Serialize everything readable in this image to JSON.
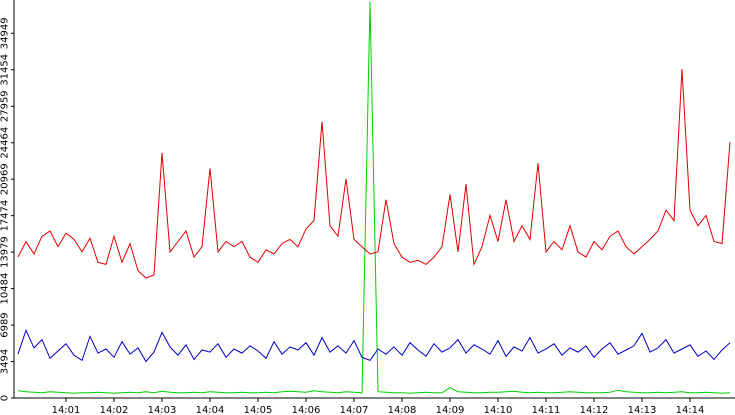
{
  "chart_data": {
    "type": "line",
    "categories": [
      null,
      null,
      null,
      null,
      null,
      null,
      "14:01",
      null,
      null,
      null,
      null,
      null,
      "14:02",
      null,
      null,
      null,
      null,
      null,
      "14:03",
      null,
      null,
      null,
      null,
      null,
      "14:04",
      null,
      null,
      null,
      null,
      null,
      "14:05",
      null,
      null,
      null,
      null,
      null,
      "14:06",
      null,
      null,
      null,
      null,
      null,
      "14:07",
      null,
      null,
      null,
      null,
      null,
      "14:08",
      null,
      null,
      null,
      null,
      null,
      "14:09",
      null,
      null,
      null,
      null,
      null,
      "14:10",
      null,
      null,
      null,
      null,
      null,
      "14:11",
      null,
      null,
      null,
      null,
      null,
      "14:12",
      null,
      null,
      null,
      null,
      null,
      "14:13",
      null,
      null,
      null,
      null,
      null,
      "14:14",
      null,
      null,
      null,
      null,
      null
    ],
    "series": [
      {
        "color": "#e00000",
        "values": [
          13500,
          15000,
          13800,
          15500,
          16000,
          14500,
          15800,
          15200,
          14000,
          15300,
          13000,
          12800,
          15500,
          13000,
          14800,
          12200,
          11500,
          11800,
          23500,
          14000,
          15000,
          16000,
          13500,
          14500,
          22000,
          14000,
          15000,
          14500,
          15000,
          13500,
          13000,
          14200,
          13800,
          14800,
          15200,
          14500,
          16200,
          17000,
          26500,
          16500,
          15500,
          21000,
          15200,
          14500,
          13800,
          14000,
          19000,
          14800,
          13500,
          13000,
          13200,
          12800,
          13500,
          14500,
          19500,
          14000,
          20500,
          12800,
          14500,
          17500,
          15000,
          19000,
          15000,
          16500,
          15200,
          22500,
          14000,
          15000,
          14200,
          16500,
          14000,
          13500,
          15000,
          14200,
          15500,
          16000,
          14500,
          13800,
          14500,
          15200,
          16000,
          18000,
          17000,
          31500,
          18000,
          16500,
          17500,
          15000,
          14800,
          24500
        ]
      },
      {
        "color": "#0000c0",
        "values": [
          4200,
          6500,
          4800,
          5600,
          3800,
          4500,
          5200,
          4100,
          3600,
          5900,
          4300,
          4700,
          3900,
          5400,
          4200,
          4800,
          3500,
          4400,
          6300,
          4900,
          4100,
          5100,
          3700,
          4600,
          4400,
          5200,
          3900,
          4700,
          4300,
          5000,
          4500,
          3800,
          5400,
          4200,
          4900,
          4600,
          5300,
          4100,
          5800,
          4400,
          5000,
          4300,
          5500,
          3900,
          3600,
          4700,
          4200,
          4900,
          4100,
          5300,
          4600,
          4000,
          5200,
          4400,
          4800,
          5600,
          4300,
          5100,
          4700,
          4200,
          5500,
          4000,
          4900,
          4500,
          5800,
          4300,
          4700,
          5200,
          4100,
          4800,
          4400,
          5000,
          3900,
          4700,
          5300,
          4200,
          4600,
          5000,
          6200,
          4400,
          4800,
          5600,
          4300,
          4700,
          5100,
          4000,
          4500,
          3700,
          4600,
          5300
        ]
      },
      {
        "color": "#00d000",
        "values": [
          700,
          600,
          550,
          500,
          600,
          550,
          500,
          450,
          500,
          500,
          550,
          500,
          450,
          500,
          550,
          500,
          600,
          500,
          650,
          550,
          500,
          500,
          550,
          500,
          600,
          550,
          500,
          500,
          550,
          500,
          500,
          550,
          500,
          600,
          650,
          600,
          550,
          700,
          600,
          550,
          500,
          600,
          550,
          500,
          38000,
          600,
          550,
          500,
          500,
          450,
          500,
          550,
          500,
          500,
          1000,
          600,
          550,
          500,
          500,
          550,
          550,
          600,
          650,
          550,
          500,
          550,
          500,
          500,
          550,
          600,
          550,
          500,
          500,
          500,
          550,
          750,
          600,
          550,
          500,
          500,
          550,
          500,
          550,
          600,
          500,
          500,
          550,
          500,
          450,
          500
        ]
      }
    ],
    "ylim": [
      0,
      38140
    ],
    "yticks": [
      0,
      3494,
      6989,
      10484,
      13979,
      17474,
      20969,
      24464,
      27959,
      31454,
      34949
    ]
  }
}
